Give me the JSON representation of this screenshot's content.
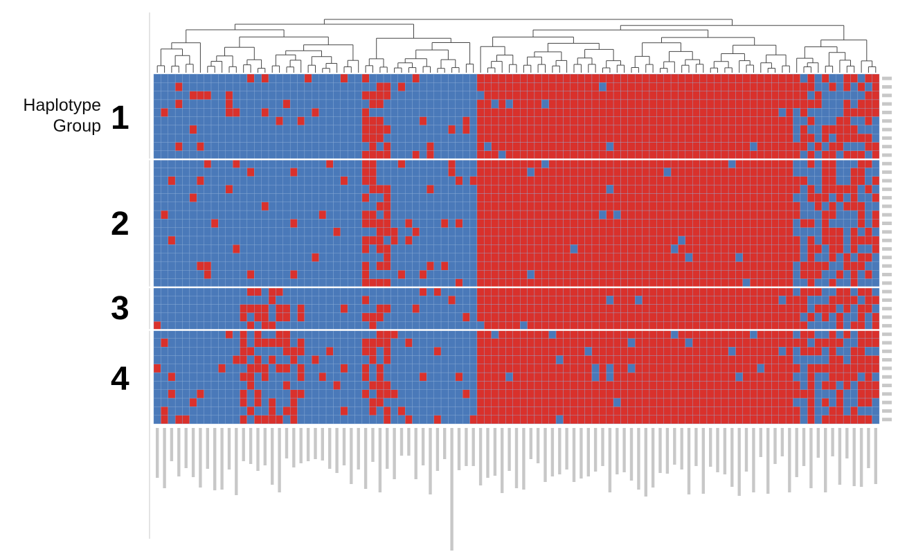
{
  "chart_data": {
    "type": "heatmap",
    "title": "",
    "xlabel": "",
    "ylabel": "",
    "colors": {
      "low": "#4a79b9",
      "high": "#d9312c",
      "separator": "#ffffff"
    },
    "row_group_title": [
      "Haplotype",
      "Group"
    ],
    "row_groups": [
      {
        "label": "1",
        "rows": 10
      },
      {
        "label": "2",
        "rows": 15
      },
      {
        "label": "3",
        "rows": 5
      },
      {
        "label": "4",
        "rows": 11
      }
    ],
    "n_columns": 101,
    "column_clusters": [
      {
        "name": "blue",
        "columns": 29
      },
      {
        "name": "mixed",
        "columns": 4
      },
      {
        "name": "blue",
        "columns": 12
      },
      {
        "name": "red",
        "columns": 44
      },
      {
        "name": "mixed",
        "columns": 12
      }
    ]
  }
}
